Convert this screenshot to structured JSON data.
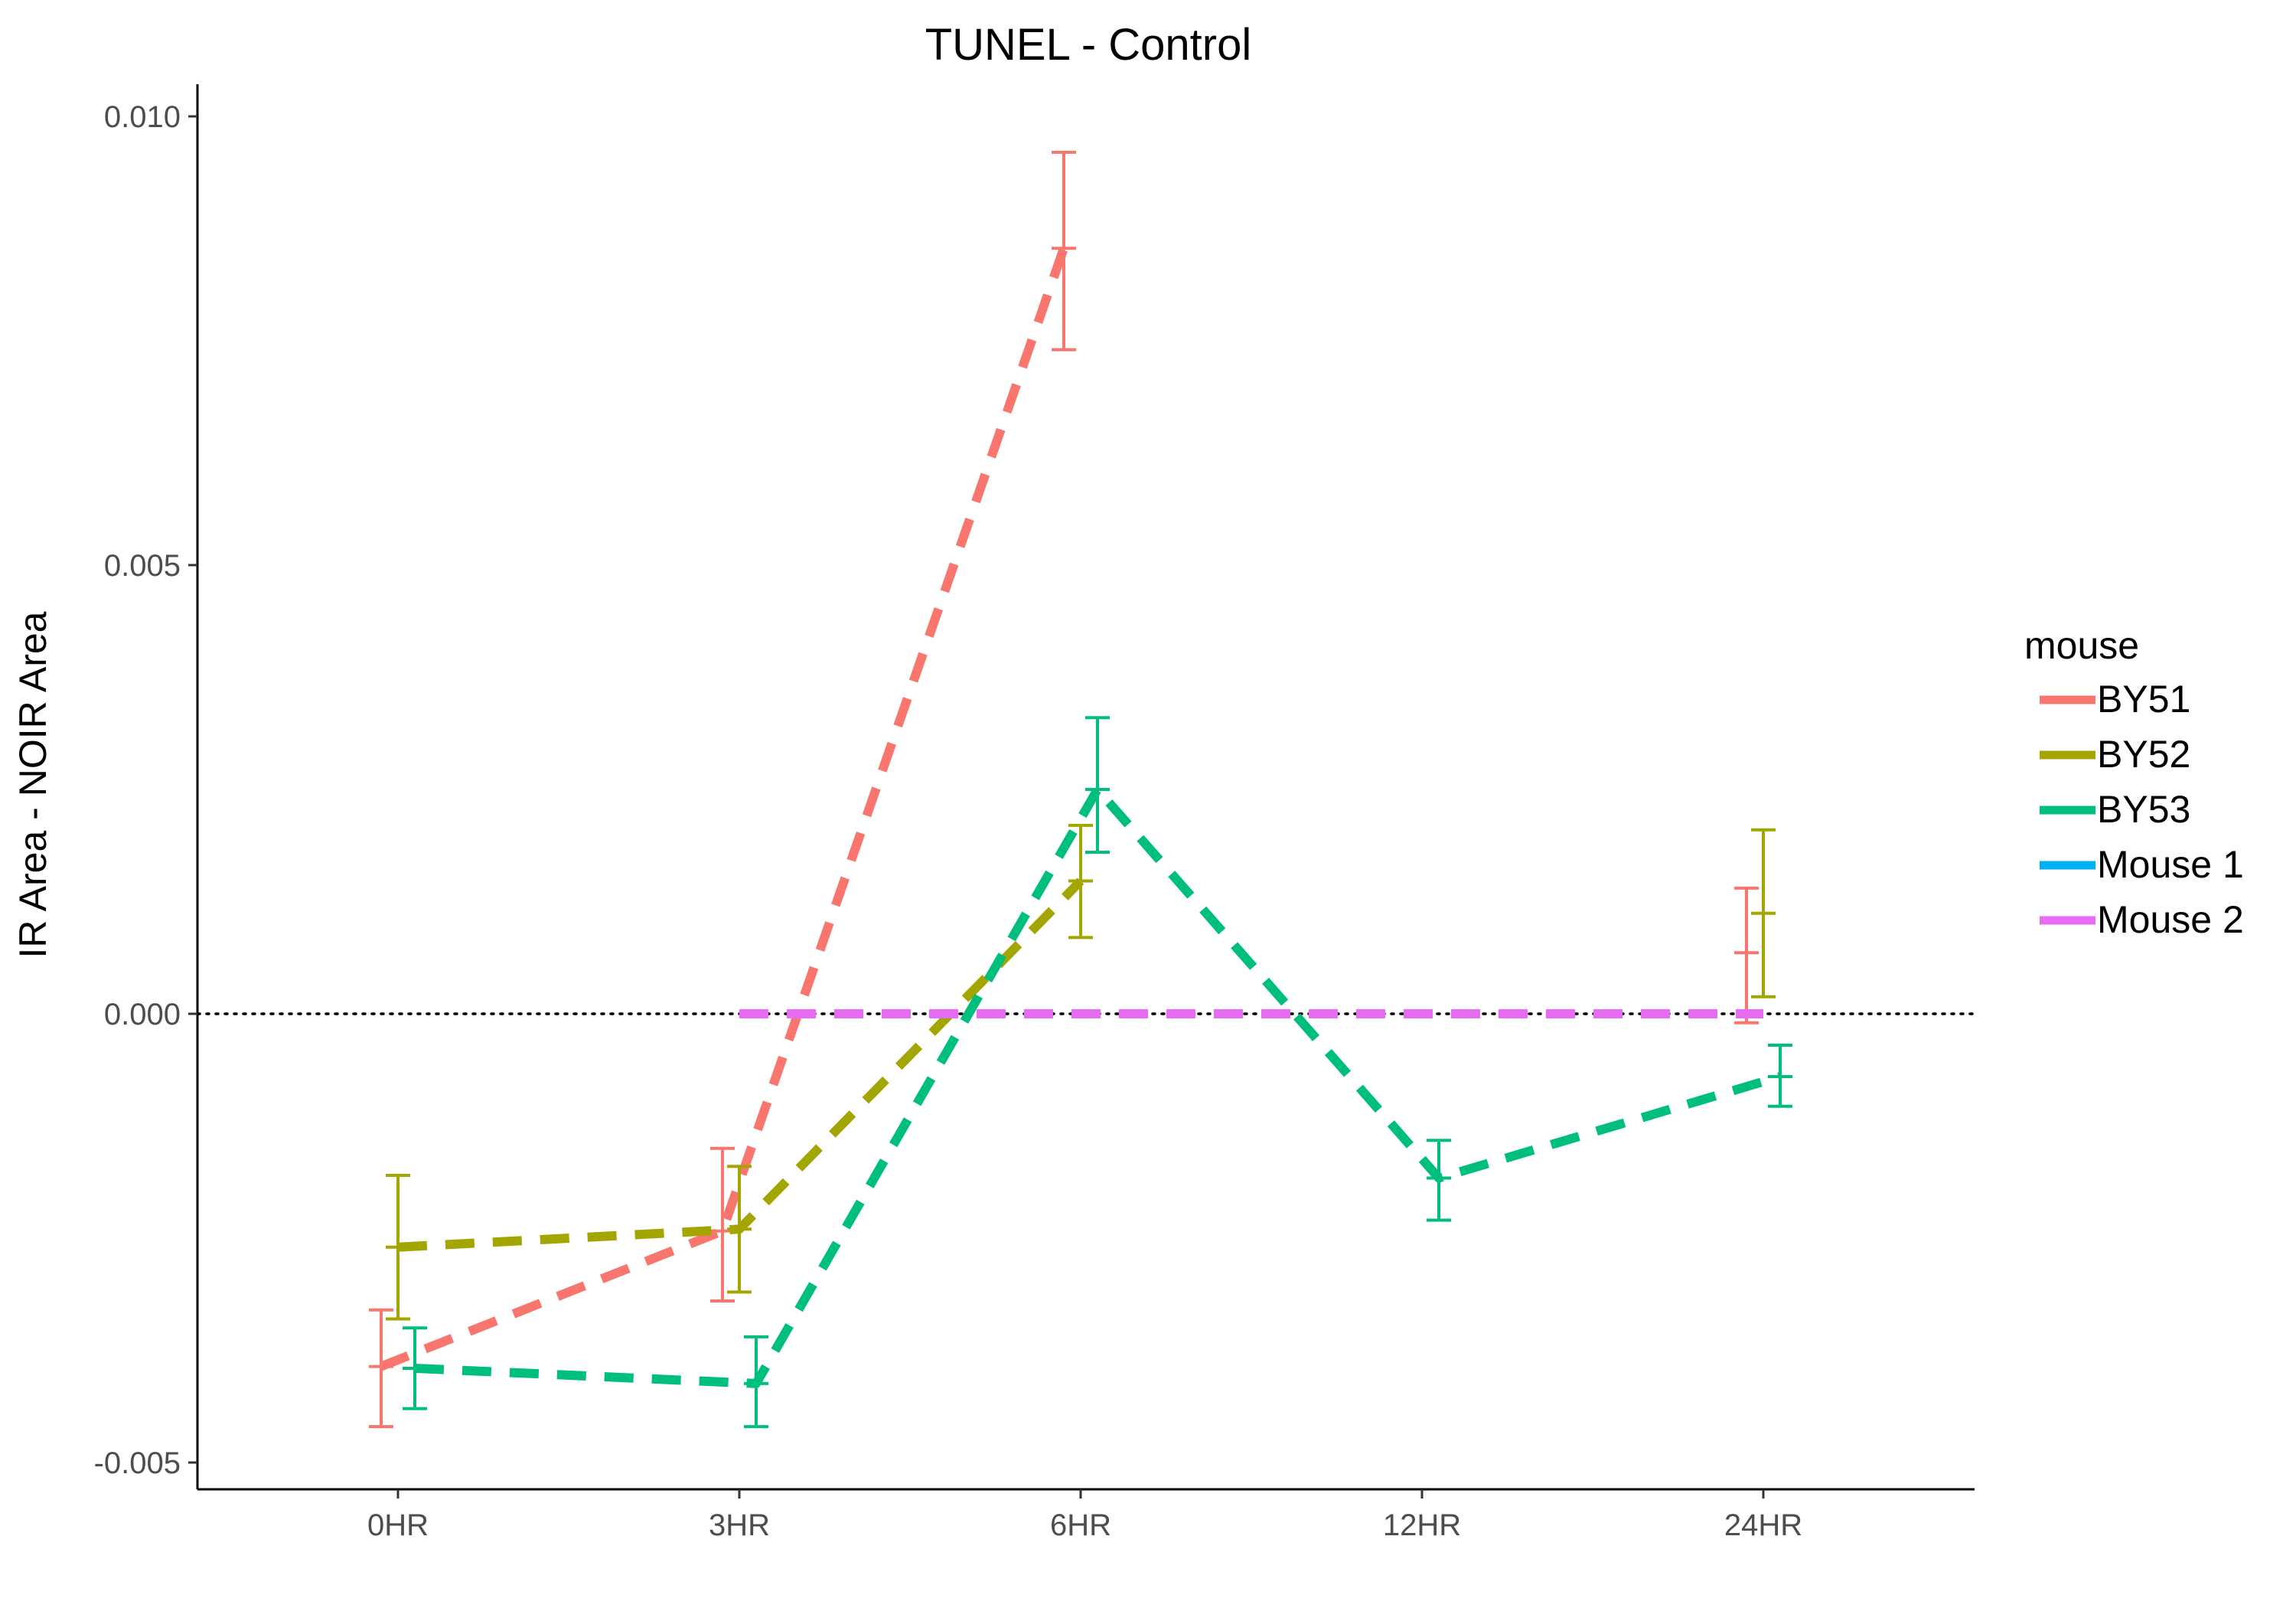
{
  "chart_data": {
    "type": "line",
    "title": "TUNEL - Control",
    "xlabel": "",
    "ylabel": "IR Area - NOIR Area",
    "categories": [
      "0HR",
      "3HR",
      "6HR",
      "12HR",
      "24HR"
    ],
    "ylim": [
      -0.0053,
      0.0102
    ],
    "yticks": [
      -0.005,
      0.0,
      0.005,
      0.01
    ],
    "ytick_labels": [
      "-0.005",
      "0.000",
      "0.005",
      "0.010"
    ],
    "hline": {
      "y": 0,
      "style": "dotted",
      "color": "#000000"
    },
    "legend": {
      "title": "mouse",
      "position": "right"
    },
    "series": [
      {
        "name": "BY51",
        "color": "#F8766D",
        "dodge": -1,
        "values": [
          -0.00393,
          -0.00242,
          0.00853,
          null,
          0.00068
        ],
        "err_low": [
          -0.0046,
          -0.0032,
          0.0074,
          null,
          -0.0001
        ],
        "err_high": [
          -0.0033,
          -0.0015,
          0.0096,
          null,
          0.0014
        ]
      },
      {
        "name": "BY52",
        "color": "#A3A500",
        "dodge": 0,
        "values": [
          -0.0026,
          -0.0024,
          0.00148,
          null,
          0.00112
        ],
        "err_low": [
          -0.0034,
          -0.0031,
          0.00085,
          null,
          0.00019
        ],
        "err_high": [
          -0.0018,
          -0.0017,
          0.0021,
          null,
          0.00205
        ]
      },
      {
        "name": "BY53",
        "color": "#00BF7D",
        "dodge": 1,
        "values": [
          -0.00395,
          -0.00412,
          0.0025,
          -0.00183,
          -0.0007
        ],
        "err_low": [
          -0.0044,
          -0.0046,
          0.0018,
          -0.0023,
          -0.00103
        ],
        "err_high": [
          -0.0035,
          -0.0036,
          0.0033,
          -0.00141,
          -0.00035
        ]
      },
      {
        "name": "Mouse 1",
        "color": "#00B0F6",
        "dodge": 0,
        "values": [
          null,
          0,
          0,
          0,
          0
        ]
      },
      {
        "name": "Mouse 2",
        "color": "#E76BF3",
        "dodge": 0,
        "values": [
          null,
          0,
          0,
          0,
          0
        ]
      }
    ]
  }
}
